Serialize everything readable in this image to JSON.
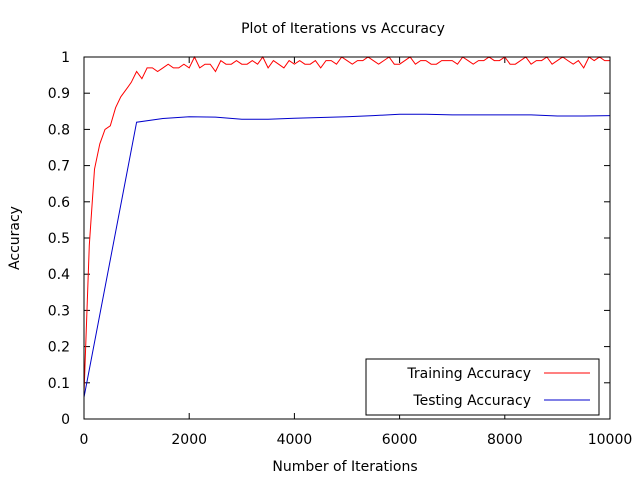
{
  "chart_data": {
    "type": "line",
    "title": "Plot of Iterations vs Accuracy",
    "xlabel": "Number of Iterations",
    "ylabel": "Accuracy",
    "xlim": [
      0,
      10000
    ],
    "ylim": [
      0,
      1
    ],
    "xticks": [
      0,
      2000,
      4000,
      6000,
      8000,
      10000
    ],
    "yticks": [
      0,
      0.1,
      0.2,
      0.3,
      0.4,
      0.5,
      0.6,
      0.7,
      0.8,
      0.9,
      1
    ],
    "grid": false,
    "legend_position": "bottom-right",
    "series": [
      {
        "name": "Training Accuracy",
        "color": "#ff0000",
        "x": [
          0,
          100,
          200,
          300,
          400,
          500,
          600,
          700,
          800,
          900,
          1000,
          1100,
          1200,
          1300,
          1400,
          1500,
          1600,
          1700,
          1800,
          1900,
          2000,
          2100,
          2200,
          2300,
          2400,
          2500,
          2600,
          2700,
          2800,
          2900,
          3000,
          3100,
          3200,
          3300,
          3400,
          3500,
          3600,
          3700,
          3800,
          3900,
          4000,
          4100,
          4200,
          4300,
          4400,
          4500,
          4600,
          4700,
          4800,
          4900,
          5000,
          5100,
          5200,
          5300,
          5400,
          5500,
          5600,
          5700,
          5800,
          5900,
          6000,
          6100,
          6200,
          6300,
          6400,
          6500,
          6600,
          6700,
          6800,
          6900,
          7000,
          7100,
          7200,
          7300,
          7400,
          7500,
          7600,
          7700,
          7800,
          7900,
          8000,
          8100,
          8200,
          8300,
          8400,
          8500,
          8600,
          8700,
          8800,
          8900,
          9000,
          9100,
          9200,
          9300,
          9400,
          9500,
          9600,
          9700,
          9800,
          9900,
          10000
        ],
        "values": [
          0.07,
          0.48,
          0.69,
          0.76,
          0.8,
          0.81,
          0.86,
          0.89,
          0.91,
          0.93,
          0.96,
          0.94,
          0.97,
          0.97,
          0.96,
          0.97,
          0.98,
          0.97,
          0.97,
          0.98,
          0.97,
          1.0,
          0.97,
          0.98,
          0.98,
          0.96,
          0.99,
          0.98,
          0.98,
          0.99,
          0.98,
          0.98,
          0.99,
          0.98,
          1.0,
          0.97,
          0.99,
          0.98,
          0.97,
          0.99,
          0.98,
          0.99,
          0.98,
          0.98,
          0.99,
          0.97,
          0.99,
          0.99,
          0.98,
          1.0,
          0.99,
          0.98,
          0.99,
          0.99,
          1.0,
          0.99,
          0.98,
          0.99,
          1.0,
          0.98,
          0.98,
          0.99,
          1.0,
          0.98,
          0.99,
          0.99,
          0.98,
          0.98,
          0.99,
          0.99,
          0.99,
          0.98,
          1.0,
          0.99,
          0.98,
          0.99,
          0.99,
          1.0,
          0.99,
          0.99,
          1.0,
          0.98,
          0.98,
          0.99,
          1.0,
          0.98,
          0.99,
          0.99,
          1.0,
          0.98,
          0.99,
          1.0,
          0.99,
          0.98,
          0.99,
          0.97,
          1.0,
          0.99,
          1.0,
          0.99,
          0.99
        ]
      },
      {
        "name": "Testing Accuracy",
        "color": "#0000cc",
        "x": [
          0,
          1000,
          1500,
          2000,
          2500,
          3000,
          3500,
          4000,
          4500,
          5000,
          5500,
          6000,
          6500,
          7000,
          7500,
          8000,
          8500,
          9000,
          9500,
          10000
        ],
        "values": [
          0.06,
          0.82,
          0.83,
          0.835,
          0.834,
          0.828,
          0.828,
          0.831,
          0.833,
          0.835,
          0.838,
          0.842,
          0.842,
          0.84,
          0.84,
          0.84,
          0.84,
          0.837,
          0.837,
          0.838
        ]
      }
    ]
  }
}
